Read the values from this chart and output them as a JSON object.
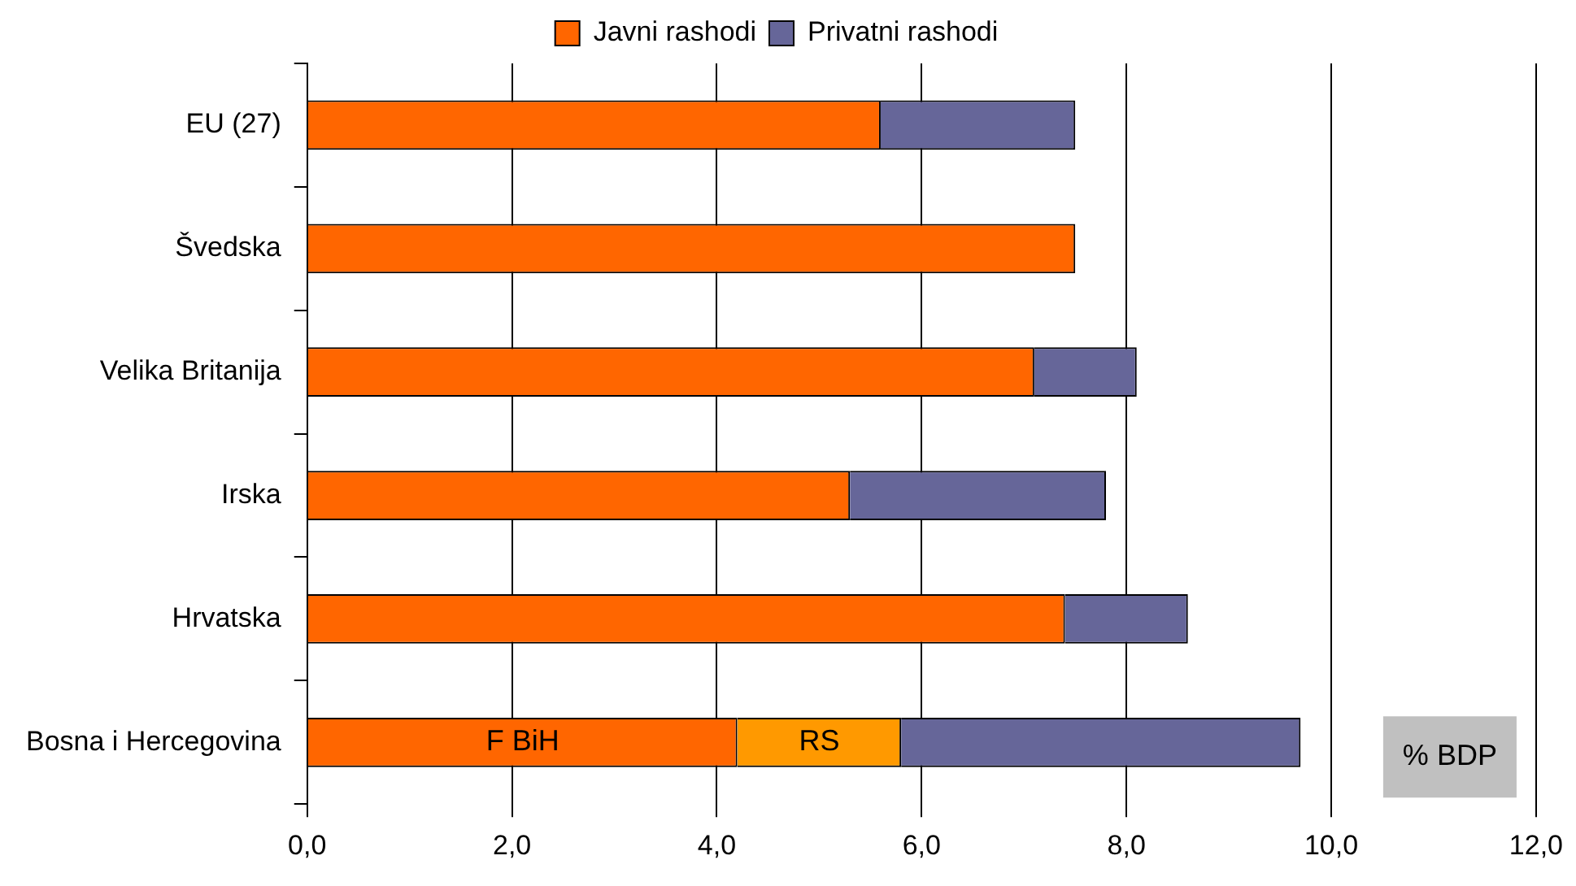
{
  "chart_data": {
    "type": "bar",
    "orientation": "horizontal",
    "stacked": true,
    "categories": [
      "EU (27)",
      "Švedska",
      "Velika Britanija",
      "Irska",
      "Hrvatska",
      "Bosna i Hercegovina"
    ],
    "series": [
      {
        "name": "Javni rashodi",
        "color": "#ff6600",
        "values": [
          5.6,
          7.5,
          7.1,
          5.3,
          7.4,
          4.2
        ]
      },
      {
        "color": "#ff9900",
        "values": [
          null,
          null,
          null,
          null,
          null,
          1.6
        ]
      },
      {
        "name": "Privatni rashodi",
        "color": "#666699",
        "values": [
          1.9,
          null,
          1.0,
          2.5,
          1.2,
          3.9
        ]
      }
    ],
    "xlim": [
      0,
      12
    ],
    "xticks": [
      {
        "value": 0,
        "label": "0,0"
      },
      {
        "value": 2,
        "label": "2,0"
      },
      {
        "value": 4,
        "label": "4,0"
      },
      {
        "value": 6,
        "label": "6,0"
      },
      {
        "value": 8,
        "label": "8,0"
      },
      {
        "value": 10,
        "label": "10,0"
      },
      {
        "value": 12,
        "label": "12,0"
      }
    ],
    "grid": "x",
    "legend": "top",
    "annotations": [
      "% BDP",
      "F BiH",
      "RS"
    ]
  }
}
